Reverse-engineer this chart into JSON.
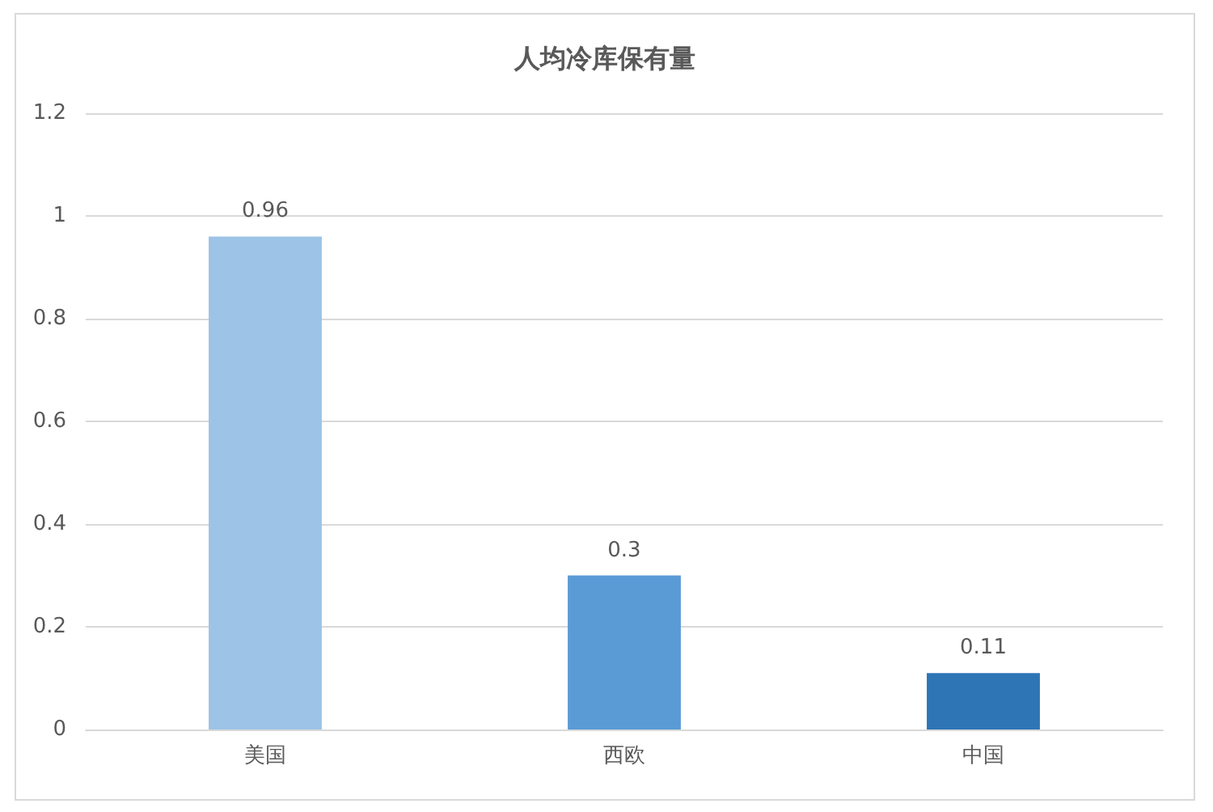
{
  "chart_data": {
    "type": "bar",
    "title": "人均冷库保有量",
    "categories": [
      "美国",
      "西欧",
      "中国"
    ],
    "values": [
      0.96,
      0.3,
      0.11
    ],
    "colors": [
      "#9dc3e6",
      "#5b9bd5",
      "#2e75b6"
    ],
    "ylim": [
      0,
      1.2
    ],
    "yticks": [
      0,
      0.2,
      0.4,
      0.6,
      0.8,
      1,
      1.2
    ],
    "grid": true,
    "data_labels": true
  }
}
